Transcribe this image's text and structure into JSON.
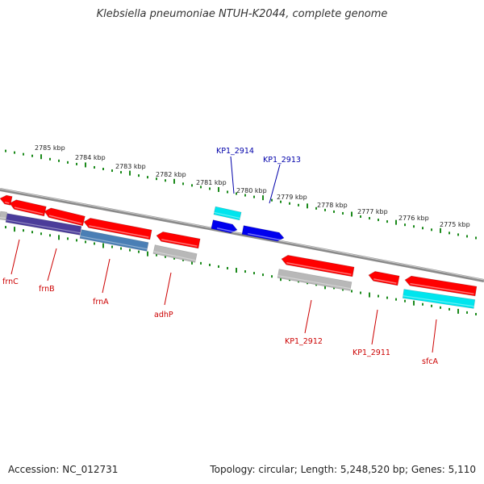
{
  "title": "Klebsiella pneumoniae NTUH-K2044, complete genome",
  "footer": {
    "accession": "Accession: NC_012731",
    "summary": "Topology: circular; Length: 5,248,520 bp; Genes: 5,110"
  },
  "colors": {
    "backbone": "#8a8a8a",
    "tick": "#1b8a1b",
    "gene_red": "#ff0000",
    "gene_blue": "#0000ee",
    "cds_cyan": "#00e5ee",
    "cds_gray": "#b8b8b8",
    "cds_steel": "#4a7fb5",
    "cds_purple": "#4b3c9a",
    "label_red": "#cc0000",
    "label_blue": "#0000aa"
  },
  "scale_labels": [
    "2785 kbp",
    "2784 kbp",
    "2783 kbp",
    "2782 kbp",
    "2781 kbp",
    "2780 kbp",
    "2779 kbp",
    "2778 kbp",
    "2777 kbp",
    "2776 kbp",
    "2775 kbp"
  ],
  "genes": [
    {
      "name": "frnC",
      "color": "red"
    },
    {
      "name": "frnB",
      "color": "red"
    },
    {
      "name": "frnA",
      "color": "red"
    },
    {
      "name": "adhP",
      "color": "red"
    },
    {
      "name": "KP1_2914",
      "color": "blue"
    },
    {
      "name": "KP1_2913",
      "color": "blue"
    },
    {
      "name": "KP1_2912",
      "color": "red"
    },
    {
      "name": "KP1_2911",
      "color": "red"
    },
    {
      "name": "sfcA",
      "color": "red"
    }
  ]
}
